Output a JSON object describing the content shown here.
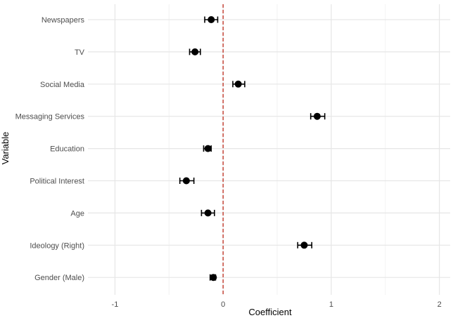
{
  "chart_data": {
    "type": "scatter",
    "subtype": "coefficient-plot",
    "title": "",
    "xlabel": "Coefficient",
    "ylabel": "Variable",
    "xlim": [
      -1.25,
      2.1
    ],
    "x_ticks": [
      -1,
      0,
      1,
      2
    ],
    "x_tick_labels": [
      "-1",
      "0",
      "1",
      "2"
    ],
    "reference_line": {
      "x": 0,
      "color": "#c0392b",
      "style": "dashed"
    },
    "grid": true,
    "points": [
      {
        "label": "Newspapers",
        "estimate": -0.11,
        "lower": -0.17,
        "upper": -0.05
      },
      {
        "label": "TV",
        "estimate": -0.26,
        "lower": -0.31,
        "upper": -0.21
      },
      {
        "label": "Social Media",
        "estimate": 0.14,
        "lower": 0.09,
        "upper": 0.2
      },
      {
        "label": "Messaging Services",
        "estimate": 0.87,
        "lower": 0.81,
        "upper": 0.94
      },
      {
        "label": "Education",
        "estimate": -0.14,
        "lower": -0.18,
        "upper": -0.11
      },
      {
        "label": "Political Interest",
        "estimate": -0.34,
        "lower": -0.4,
        "upper": -0.27
      },
      {
        "label": "Age",
        "estimate": -0.14,
        "lower": -0.2,
        "upper": -0.08
      },
      {
        "label": "Ideology (Right)",
        "estimate": 0.75,
        "lower": 0.69,
        "upper": 0.82
      },
      {
        "label": "Gender (Male)",
        "estimate": -0.09,
        "lower": -0.12,
        "upper": -0.07
      }
    ]
  },
  "colors": {
    "point": "#000000",
    "grid_major": "#e6e6e6",
    "grid_minor": "#f2f2f2",
    "reference": "#c0392b"
  }
}
